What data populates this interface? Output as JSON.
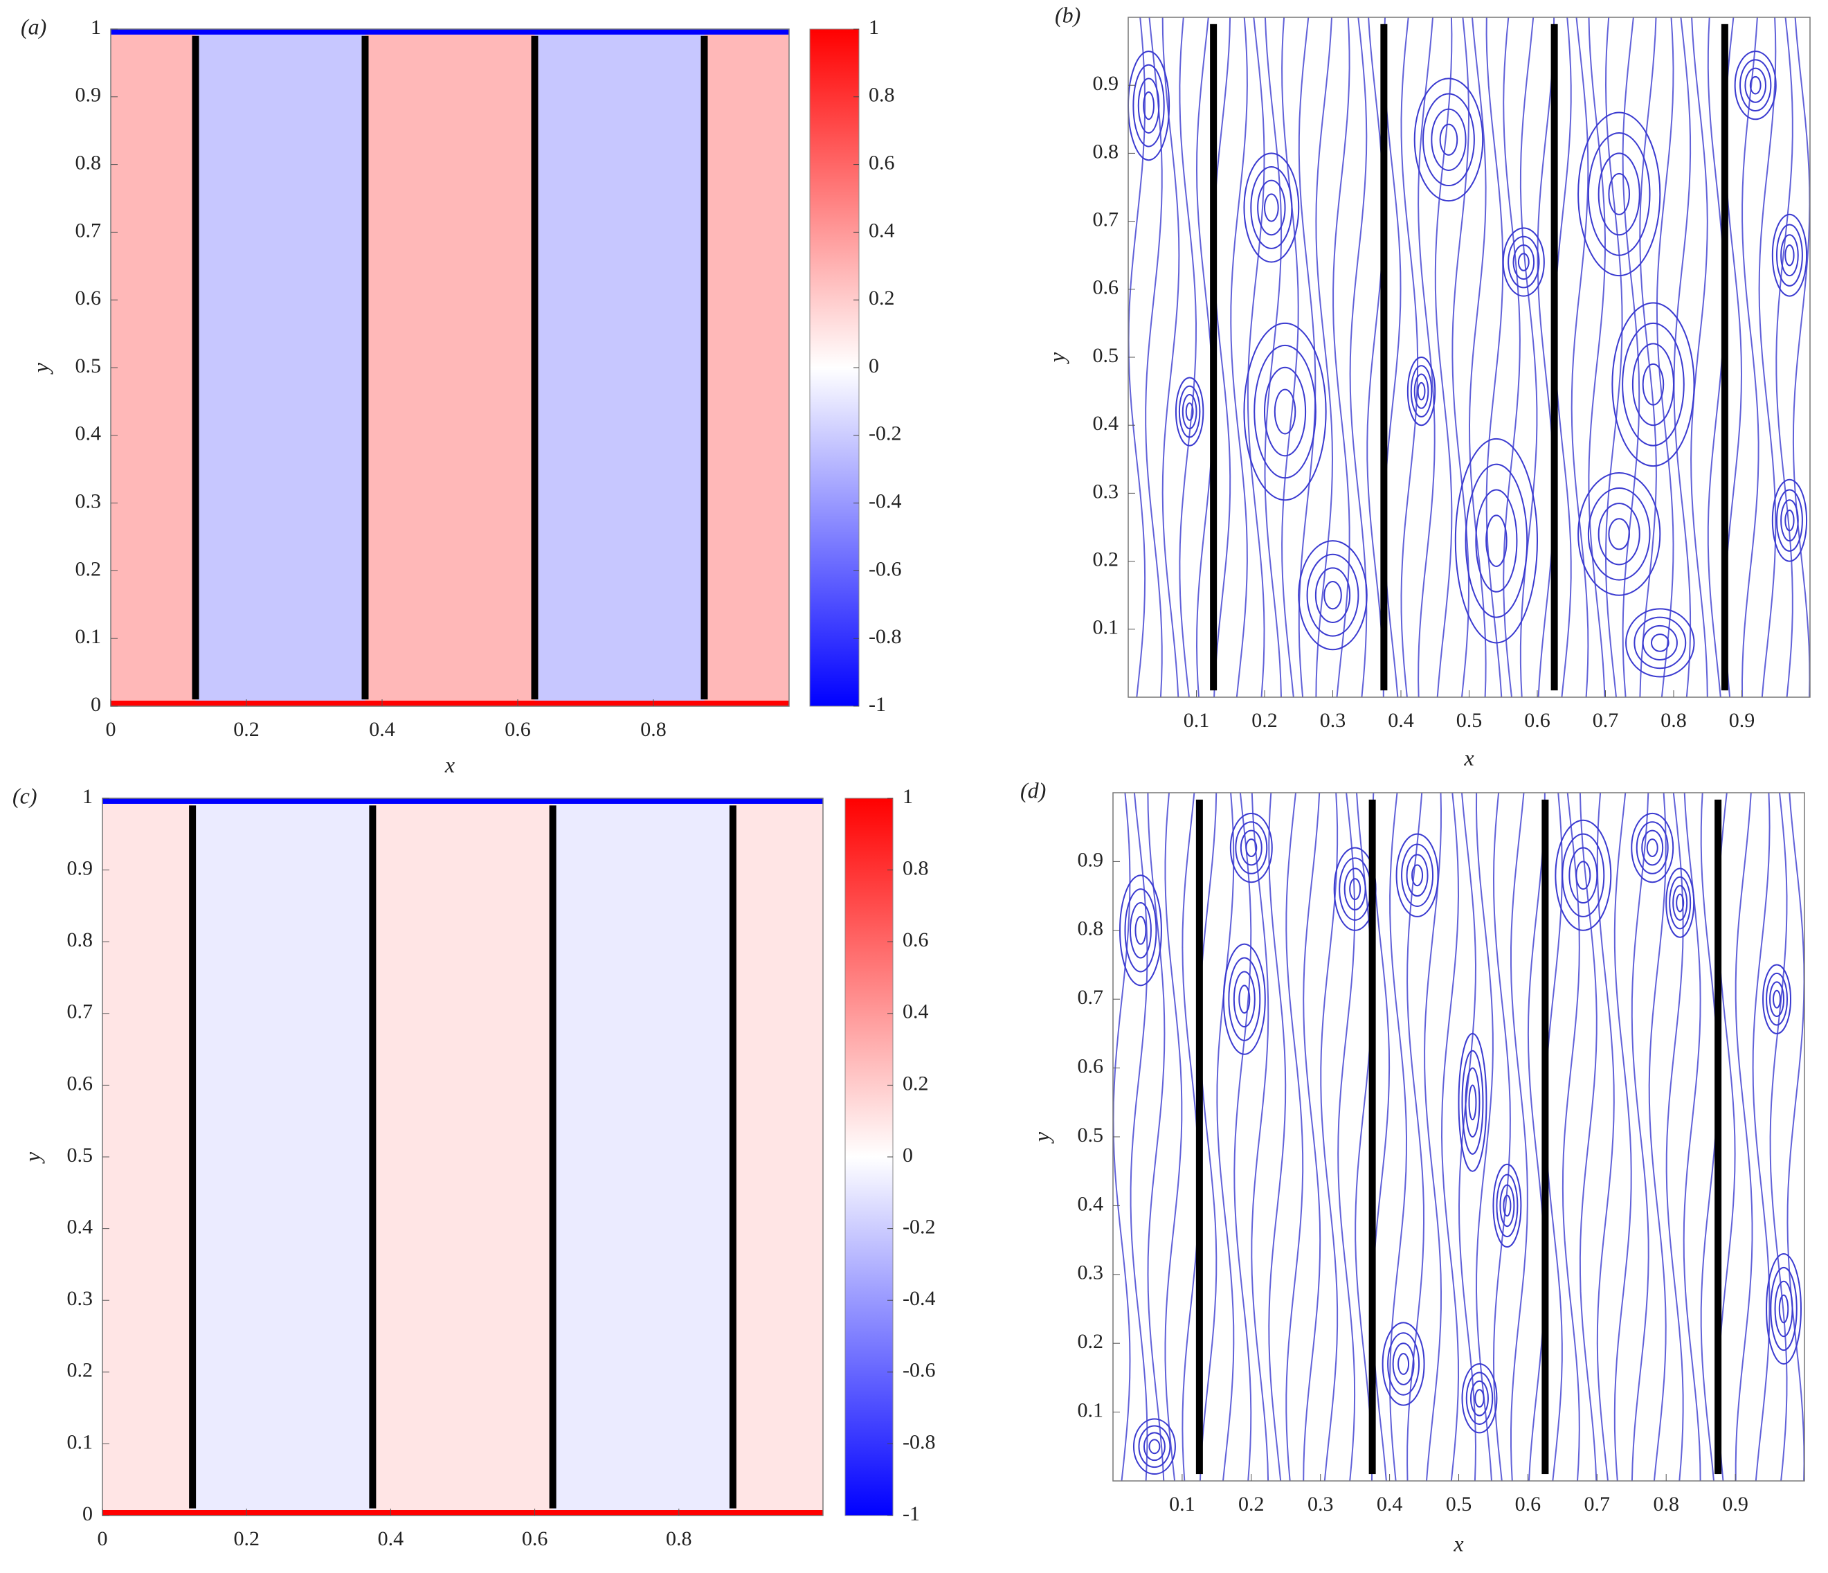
{
  "chart_data": [
    {
      "type": "heatmap",
      "panel_label": "(a)",
      "x_label": "x",
      "y_label": "y",
      "xlim": [
        0,
        1
      ],
      "ylim": [
        0,
        1
      ],
      "xticks": [
        0,
        0.2,
        0.4,
        0.6,
        0.8
      ],
      "yticks": [
        0,
        0.1,
        0.2,
        0.3,
        0.4,
        0.5,
        0.6,
        0.7,
        0.8,
        0.9,
        1
      ],
      "x_edges": [
        0,
        0.125,
        0.375,
        0.625,
        0.875,
        1
      ],
      "values": [
        0.28,
        -0.22,
        0.28,
        -0.22,
        0.28
      ],
      "wall_values": {
        "bottom": 1,
        "top": -1
      },
      "plates_x": [
        0.125,
        0.375,
        0.625,
        0.875
      ],
      "plate_ylim": [
        0.01,
        0.99
      ],
      "colormap": [
        "#0000ff",
        "#ffffff",
        "#ff0000"
      ],
      "clim": [
        -1,
        1
      ],
      "cticks": [
        -1,
        -0.8,
        -0.6,
        -0.4,
        -0.2,
        0,
        0.2,
        0.4,
        0.6,
        0.8,
        1
      ]
    },
    {
      "type": "streamline",
      "panel_label": "(b)",
      "x_label": "x",
      "y_label": "y",
      "xlim": [
        0,
        1
      ],
      "ylim": [
        0,
        1
      ],
      "xticks": [
        0.1,
        0.2,
        0.3,
        0.4,
        0.5,
        0.6,
        0.7,
        0.8,
        0.9
      ],
      "yticks": [
        0.1,
        0.2,
        0.3,
        0.4,
        0.5,
        0.6,
        0.7,
        0.8,
        0.9
      ],
      "plates_x": [
        0.125,
        0.375,
        0.625,
        0.875
      ],
      "plate_ylim": [
        0.01,
        0.99
      ],
      "color": "#3a3ad0"
    },
    {
      "type": "heatmap",
      "panel_label": "(c)",
      "y_label": "y",
      "xlim": [
        0,
        1
      ],
      "ylim": [
        0,
        1
      ],
      "xticks": [
        0,
        0.2,
        0.4,
        0.6,
        0.8
      ],
      "yticks": [
        0,
        0.1,
        0.2,
        0.3,
        0.4,
        0.5,
        0.6,
        0.7,
        0.8,
        0.9,
        1
      ],
      "x_edges": [
        0,
        0.125,
        0.375,
        0.625,
        0.875,
        1
      ],
      "values": [
        0.1,
        -0.08,
        0.1,
        -0.08,
        0.1
      ],
      "wall_values": {
        "bottom": 1,
        "top": -1
      },
      "plates_x": [
        0.125,
        0.375,
        0.625,
        0.875
      ],
      "plate_ylim": [
        0.01,
        0.99
      ],
      "colormap": [
        "#0000ff",
        "#ffffff",
        "#ff0000"
      ],
      "clim": [
        -1,
        1
      ],
      "cticks": [
        -1,
        -0.8,
        -0.6,
        -0.4,
        -0.2,
        0,
        0.2,
        0.4,
        0.6,
        0.8,
        1
      ]
    },
    {
      "type": "streamline",
      "panel_label": "(d)",
      "x_label": "x",
      "y_label": "y",
      "xlim": [
        0,
        1
      ],
      "ylim": [
        0,
        1
      ],
      "xticks": [
        0.1,
        0.2,
        0.3,
        0.4,
        0.5,
        0.6,
        0.7,
        0.8,
        0.9
      ],
      "yticks": [
        0.1,
        0.2,
        0.3,
        0.4,
        0.5,
        0.6,
        0.7,
        0.8,
        0.9
      ],
      "plates_x": [
        0.125,
        0.375,
        0.625,
        0.875
      ],
      "plate_ylim": [
        0.01,
        0.99
      ],
      "color": "#3a3ad0"
    }
  ]
}
